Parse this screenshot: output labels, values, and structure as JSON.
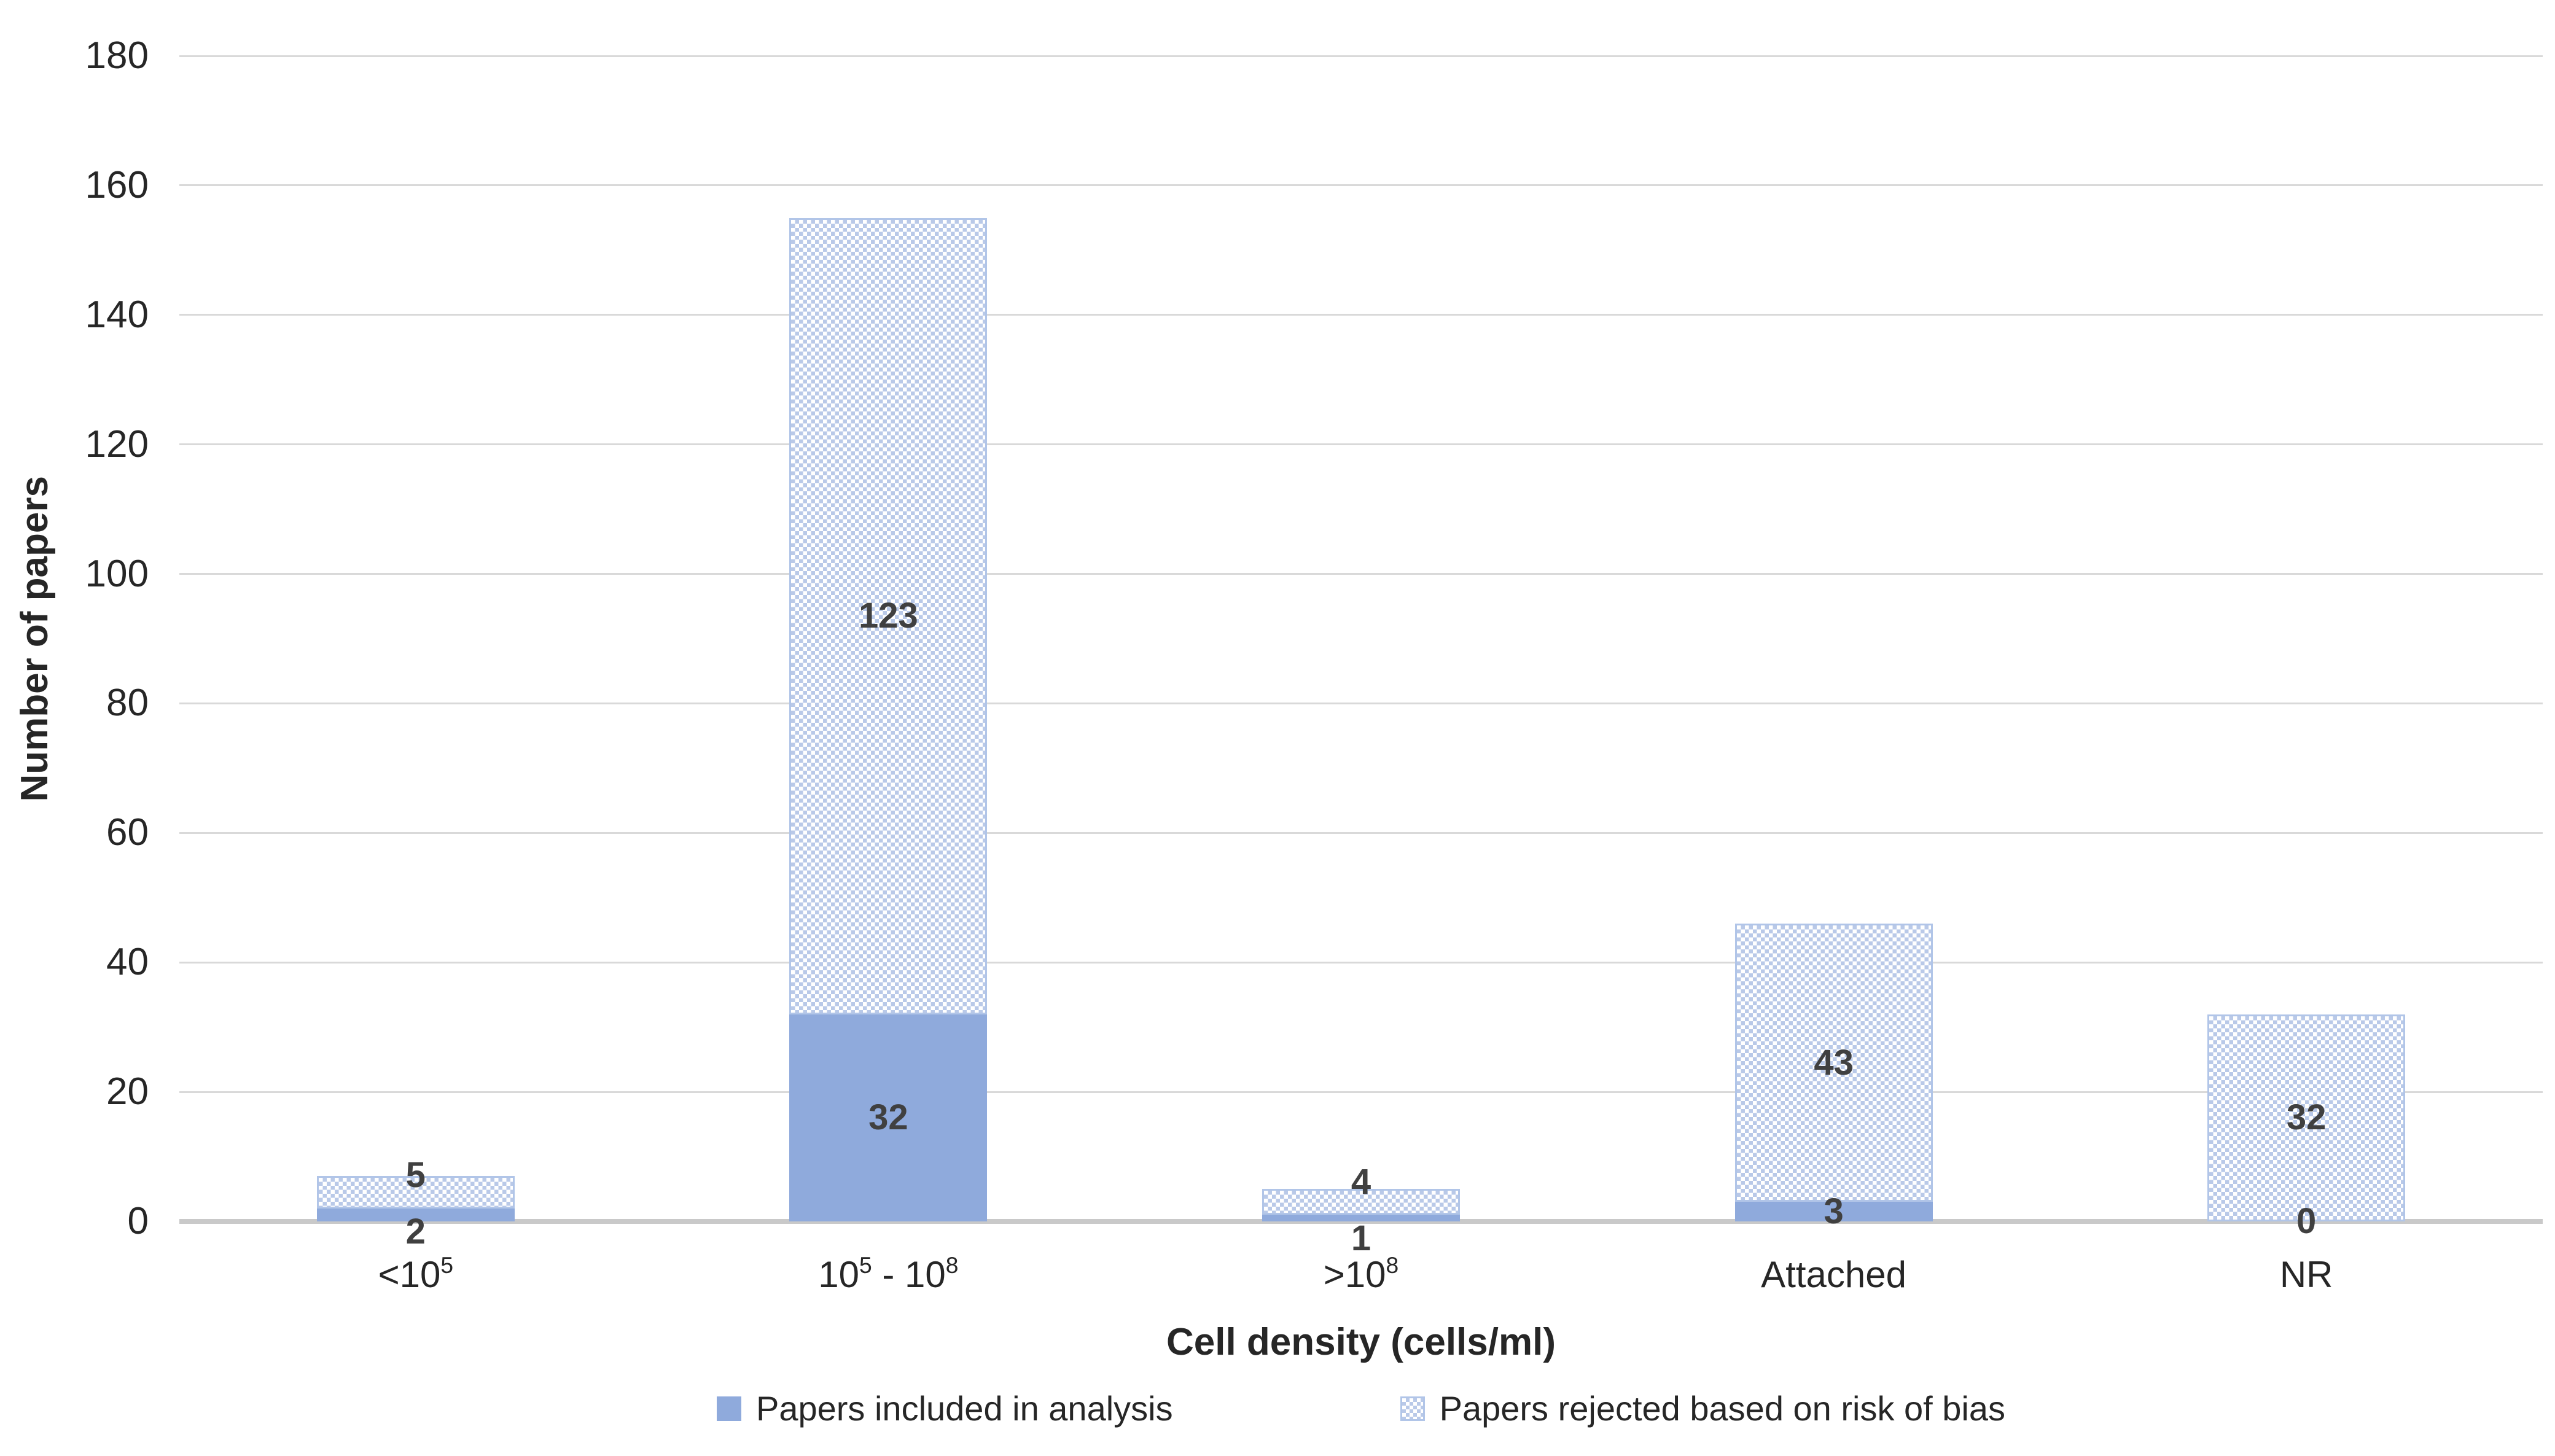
{
  "chart_data": {
    "type": "bar",
    "stacked": true,
    "title": "",
    "xlabel": "Cell density (cells/ml)",
    "ylabel": "Number of papers",
    "ylim": [
      0,
      180
    ],
    "ytick_step": 20,
    "yticks": [
      0,
      20,
      40,
      60,
      80,
      100,
      120,
      140,
      160,
      180
    ],
    "grid": true,
    "legend_position": "bottom",
    "categories": [
      {
        "parts": [
          {
            "t": "<10"
          },
          {
            "t": "5",
            "sup": true
          }
        ]
      },
      {
        "parts": [
          {
            "t": "10"
          },
          {
            "t": "5",
            "sup": true
          },
          {
            "t": " - 10"
          },
          {
            "t": "8",
            "sup": true
          }
        ]
      },
      {
        "parts": [
          {
            "t": ">10"
          },
          {
            "t": "8",
            "sup": true
          }
        ]
      },
      {
        "parts": [
          {
            "t": "Attached"
          }
        ]
      },
      {
        "parts": [
          {
            "t": "NR"
          }
        ]
      }
    ],
    "series": [
      {
        "name": "Papers included in analysis",
        "fill": "solid",
        "values": [
          2,
          32,
          1,
          3,
          0
        ]
      },
      {
        "name": "Papers rejected based on risk of bias",
        "fill": "pattern",
        "values": [
          5,
          123,
          4,
          43,
          32
        ]
      }
    ]
  },
  "colors": {
    "background": "#FFFFFF",
    "series_solid": "#8FAADC",
    "series_pattern_fg": "#B9C9E8",
    "series_pattern_border": "#B1C5E8",
    "gridline": "#D9D9D9",
    "axis_line": "#C9C9C9",
    "data_label": "#404040",
    "text": "#262626"
  }
}
